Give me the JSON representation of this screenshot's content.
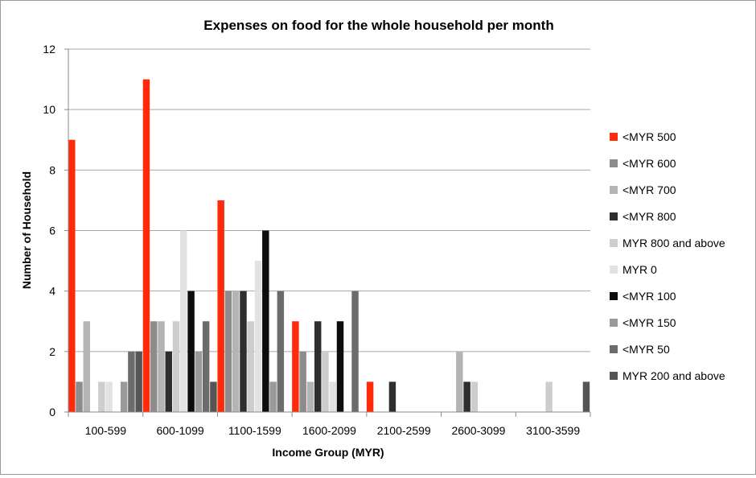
{
  "chart_data": {
    "type": "bar",
    "title": "Expenses on food for the whole household per month",
    "xlabel": "Income Group (MYR)",
    "ylabel": "Number of Household",
    "ylim": [
      0,
      12
    ],
    "yticks": [
      0,
      2,
      4,
      6,
      8,
      10,
      12
    ],
    "grid": true,
    "legend_position": "right",
    "categories": [
      "100-599",
      "600-1099",
      "1100-1599",
      "1600-2099",
      "2100-2599",
      "2600-3099",
      "3100-3599"
    ],
    "series": [
      {
        "name": "<MYR 500",
        "color": "#ff2a0a",
        "values": [
          9,
          11,
          7,
          3,
          1,
          0,
          0
        ]
      },
      {
        "name": "<MYR 600",
        "color": "#8c8c8c",
        "values": [
          1,
          3,
          4,
          2,
          0,
          0,
          0
        ]
      },
      {
        "name": "<MYR 700",
        "color": "#b4b4b4",
        "values": [
          3,
          3,
          4,
          1,
          0,
          2,
          0
        ]
      },
      {
        "name": "<MYR 800",
        "color": "#2e2e2e",
        "values": [
          0,
          2,
          4,
          3,
          1,
          1,
          0
        ]
      },
      {
        "name": "MYR 800 and above",
        "color": "#cdcdcd",
        "values": [
          1,
          3,
          3,
          2,
          0,
          1,
          1
        ]
      },
      {
        "name": "MYR 0",
        "color": "#e2e2e2",
        "values": [
          1,
          6,
          5,
          1,
          0,
          0,
          0
        ]
      },
      {
        "name": "<MYR 100",
        "color": "#0d0d0d",
        "values": [
          0,
          4,
          6,
          3,
          0,
          0,
          0
        ]
      },
      {
        "name": "<MYR 150",
        "color": "#9a9a9a",
        "values": [
          1,
          2,
          1,
          0,
          0,
          0,
          0
        ]
      },
      {
        "name": "<MYR 50",
        "color": "#6c6c6c",
        "values": [
          2,
          3,
          4,
          4,
          0,
          0,
          0
        ]
      },
      {
        "name": "MYR 200 and above",
        "color": "#555555",
        "values": [
          2,
          1,
          0,
          0,
          0,
          0,
          1
        ]
      }
    ]
  }
}
